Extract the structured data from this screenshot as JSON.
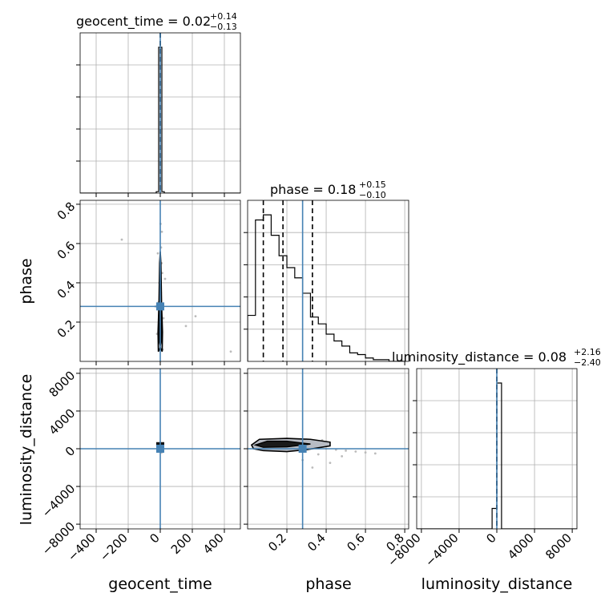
{
  "colors": {
    "truth": "#4682b4",
    "hist": "#000000",
    "grid": "#b0b0b0",
    "quantile": "#000000",
    "contour_fill": "#000000",
    "samples": "#bbbbbb"
  },
  "titles": {
    "geocent_time": {
      "prefix": "geocent_time = 0.02",
      "sup": "+0.14",
      "sub": "−0.13"
    },
    "phase": {
      "prefix": "phase = 0.18",
      "sup": "+0.15",
      "sub": "−0.10"
    },
    "luminosity_distance": {
      "prefix": "luminosity_distance = 0.08",
      "sup": "+2.16",
      "sub": "−2.40"
    }
  },
  "axis_labels": {
    "geocent_time": "geocent_time",
    "phase": "phase",
    "luminosity_distance": "luminosity_distance"
  },
  "chart_data": {
    "type": "corner",
    "parameters": [
      "geocent_time",
      "phase",
      "luminosity_distance"
    ],
    "truths": {
      "geocent_time": 0.0,
      "phase": 0.28,
      "luminosity_distance": 0.0
    },
    "ranges": {
      "geocent_time": [
        -500,
        500
      ],
      "phase": [
        0.0,
        0.82
      ],
      "luminosity_distance": [
        -8500,
        8500
      ]
    },
    "ticks": {
      "geocent_time": {
        "values": [
          -400,
          -200,
          0,
          200,
          400
        ],
        "labels": [
          "−400",
          "−200",
          "0",
          "200",
          "400"
        ]
      },
      "phase": {
        "values": [
          0.2,
          0.4,
          0.6,
          0.8
        ],
        "labels": [
          "0.2",
          "0.4",
          "0.6",
          "0.8"
        ]
      },
      "luminosity_distance": {
        "values": [
          -8000,
          -4000,
          0,
          4000,
          8000
        ],
        "labels": [
          "−8000",
          "−4000",
          "0",
          "4000",
          "8000"
        ]
      }
    },
    "histograms": {
      "geocent_time": {
        "edges": [
          -500,
          -450,
          -400,
          -350,
          -300,
          -250,
          -200,
          -150,
          -100,
          -50,
          -25,
          -10,
          10,
          25,
          50,
          100,
          150,
          200,
          250,
          300,
          350,
          400,
          450,
          500
        ],
        "counts": [
          0,
          0,
          0,
          0,
          0,
          0,
          0,
          0,
          0,
          0,
          0.01,
          1.0,
          0.01,
          0,
          0,
          0,
          0,
          0,
          0,
          0,
          0,
          0,
          0
        ],
        "quantiles": [
          -0.11,
          0.02,
          0.16
        ]
      },
      "phase": {
        "edges": [
          0.0,
          0.04,
          0.08,
          0.12,
          0.16,
          0.2,
          0.24,
          0.28,
          0.32,
          0.36,
          0.4,
          0.44,
          0.48,
          0.52,
          0.56,
          0.6,
          0.64,
          0.68,
          0.72,
          0.76,
          0.8
        ],
        "counts": [
          0.27,
          0.83,
          0.86,
          0.74,
          0.62,
          0.55,
          0.49,
          0.4,
          0.26,
          0.22,
          0.16,
          0.12,
          0.09,
          0.05,
          0.04,
          0.02,
          0.01,
          0.01,
          0.0,
          0.0
        ],
        "quantiles": [
          0.08,
          0.18,
          0.33
        ]
      },
      "luminosity_distance": {
        "edges": [
          -8500,
          -7500,
          -6500,
          -5500,
          -4500,
          -3500,
          -2500,
          -1500,
          -500,
          0,
          500,
          1500,
          2500,
          3500,
          4500,
          5500,
          6500,
          7500,
          8500
        ],
        "counts": [
          0,
          0,
          0,
          0,
          0,
          0,
          0,
          0,
          0.14,
          1.0,
          0,
          0,
          0,
          0,
          0,
          0,
          0,
          0
        ],
        "quantiles": [
          -2.32,
          0.08,
          2.24
        ]
      }
    },
    "scatter_samples": {
      "geocent_time_phase": {
        "x": [
          -240,
          -15,
          8,
          12,
          -6,
          4,
          10,
          -12,
          20,
          160,
          220,
          440,
          -5,
          7,
          15,
          -20,
          2,
          30,
          -30,
          5
        ],
        "y": [
          0.62,
          0.55,
          0.5,
          0.45,
          0.4,
          0.35,
          0.66,
          0.3,
          0.22,
          0.18,
          0.23,
          0.05,
          0.12,
          0.08,
          0.06,
          0.14,
          0.7,
          0.42,
          0.28,
          0.58
        ]
      },
      "phase_luminosity_distance": {
        "x": [
          0.05,
          0.1,
          0.15,
          0.2,
          0.25,
          0.3,
          0.35,
          0.4,
          0.45,
          0.5,
          0.55,
          0.6,
          0.65,
          0.33,
          0.28,
          0.38,
          0.22,
          0.48,
          0.42,
          0.36
        ],
        "y": [
          500,
          700,
          600,
          400,
          300,
          200,
          100,
          0,
          -100,
          -200,
          -300,
          -400,
          -500,
          -2000,
          -1200,
          900,
          1000,
          -800,
          -1500,
          -600
        ]
      },
      "geocent_time_luminosity_distance": {
        "x": [
          -10,
          5,
          15,
          -5,
          0,
          10,
          -15,
          20,
          -20,
          8
        ],
        "y": [
          200,
          -100,
          300,
          500,
          -300,
          100,
          -200,
          0,
          400,
          -400
        ]
      }
    },
    "contours": {
      "geocent_time_phase": {
        "outer": [
          [
            0,
            0.07
          ],
          [
            12,
            0.05
          ],
          [
            14,
            0.15
          ],
          [
            8,
            0.3
          ],
          [
            4,
            0.5
          ],
          [
            0,
            0.56
          ],
          [
            -4,
            0.5
          ],
          [
            -8,
            0.3
          ],
          [
            -14,
            0.15
          ],
          [
            -12,
            0.05
          ]
        ],
        "inner": [
          [
            0,
            0.08
          ],
          [
            7,
            0.1
          ],
          [
            8,
            0.2
          ],
          [
            5,
            0.28
          ],
          [
            0,
            0.3
          ],
          [
            -5,
            0.28
          ],
          [
            -8,
            0.2
          ],
          [
            -7,
            0.1
          ]
        ]
      },
      "phase_luminosity_distance": {
        "outer": [
          [
            0.02,
            400
          ],
          [
            0.06,
            1000
          ],
          [
            0.2,
            1100
          ],
          [
            0.32,
            1000
          ],
          [
            0.42,
            700
          ],
          [
            0.42,
            300
          ],
          [
            0.3,
            -100
          ],
          [
            0.2,
            -300
          ],
          [
            0.08,
            -200
          ],
          [
            0.03,
            0
          ]
        ],
        "inner": [
          [
            0.04,
            400
          ],
          [
            0.1,
            800
          ],
          [
            0.2,
            800
          ],
          [
            0.32,
            500
          ],
          [
            0.2,
            200
          ],
          [
            0.08,
            150
          ]
        ]
      }
    }
  }
}
